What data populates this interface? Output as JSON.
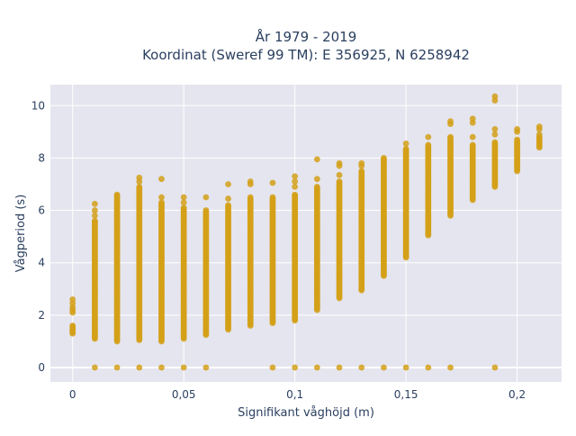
{
  "chart_data": {
    "type": "scatter",
    "title_line1": "År 1979 - 2019",
    "title_line2": "Koordinat (Sweref 99 TM): E 356925, N 6258942",
    "xlabel": "Signifikant våghöjd (m)",
    "ylabel": "Vågperiod (s)",
    "xlim": [
      -0.01,
      0.22
    ],
    "ylim": [
      -0.55,
      10.8
    ],
    "x_ticks": [
      0,
      0.05,
      0.1,
      0.15,
      0.2
    ],
    "x_tick_labels": [
      "0",
      "0,05",
      "0,1",
      "0,15",
      "0,2"
    ],
    "y_ticks": [
      0,
      2,
      4,
      6,
      8,
      10
    ],
    "y_tick_labels": [
      "0",
      "2",
      "4",
      "6",
      "8",
      "10"
    ],
    "grid": true,
    "marker_color": "#d4a017",
    "plot_background": "#e5e5ef",
    "columns": [
      {
        "x": 0.0,
        "y_min": 1.3,
        "y_max": 1.6,
        "extra_y": [
          2.1,
          2.2,
          2.3,
          2.45,
          2.6
        ],
        "zero": false
      },
      {
        "x": 0.01,
        "y_min": 1.1,
        "y_max": 5.6,
        "extra_y": [
          5.8,
          6.0,
          6.25
        ],
        "zero": true
      },
      {
        "x": 0.02,
        "y_min": 1.0,
        "y_max": 6.6,
        "extra_y": [],
        "zero": true
      },
      {
        "x": 0.03,
        "y_min": 1.05,
        "y_max": 6.9,
        "extra_y": [
          7.1,
          7.25
        ],
        "zero": true
      },
      {
        "x": 0.04,
        "y_min": 1.0,
        "y_max": 6.3,
        "extra_y": [
          6.5,
          7.2
        ],
        "zero": true
      },
      {
        "x": 0.05,
        "y_min": 1.1,
        "y_max": 6.1,
        "extra_y": [
          6.3,
          6.5
        ],
        "zero": true
      },
      {
        "x": 0.06,
        "y_min": 1.25,
        "y_max": 6.0,
        "extra_y": [
          6.5
        ],
        "zero": true
      },
      {
        "x": 0.07,
        "y_min": 1.45,
        "y_max": 6.2,
        "extra_y": [
          6.45,
          7.0
        ],
        "zero": false
      },
      {
        "x": 0.08,
        "y_min": 1.6,
        "y_max": 6.5,
        "extra_y": [
          7.0,
          7.1
        ],
        "zero": false
      },
      {
        "x": 0.09,
        "y_min": 1.7,
        "y_max": 6.5,
        "extra_y": [
          7.05
        ],
        "zero": true
      },
      {
        "x": 0.1,
        "y_min": 1.8,
        "y_max": 6.6,
        "extra_y": [
          6.9,
          7.1,
          7.3
        ],
        "zero": true
      },
      {
        "x": 0.11,
        "y_min": 2.2,
        "y_max": 6.9,
        "extra_y": [
          7.2,
          7.95
        ],
        "zero": true
      },
      {
        "x": 0.12,
        "y_min": 2.65,
        "y_max": 7.1,
        "extra_y": [
          7.35,
          7.7,
          7.8
        ],
        "zero": true
      },
      {
        "x": 0.13,
        "y_min": 3.0,
        "y_max": 7.5,
        "extra_y": [
          2.95,
          7.7,
          7.8
        ],
        "zero": true
      },
      {
        "x": 0.14,
        "y_min": 3.5,
        "y_max": 8.0,
        "extra_y": [],
        "zero": true
      },
      {
        "x": 0.15,
        "y_min": 4.2,
        "y_max": 8.35,
        "extra_y": [
          8.55
        ],
        "zero": true
      },
      {
        "x": 0.16,
        "y_min": 5.05,
        "y_max": 8.5,
        "extra_y": [
          8.8
        ],
        "zero": true
      },
      {
        "x": 0.17,
        "y_min": 5.8,
        "y_max": 8.8,
        "extra_y": [
          9.3,
          9.4
        ],
        "zero": true
      },
      {
        "x": 0.18,
        "y_min": 6.4,
        "y_max": 8.5,
        "extra_y": [
          8.8,
          9.35,
          9.5
        ],
        "zero": false
      },
      {
        "x": 0.19,
        "y_min": 6.9,
        "y_max": 8.6,
        "extra_y": [
          8.9,
          9.1,
          10.2,
          10.35
        ],
        "zero": true
      },
      {
        "x": 0.2,
        "y_min": 7.5,
        "y_max": 8.7,
        "extra_y": [
          9.0,
          9.1
        ],
        "zero": false
      },
      {
        "x": 0.21,
        "y_min": 8.4,
        "y_max": 8.8,
        "extra_y": [
          8.9,
          9.1,
          9.2
        ],
        "zero": false
      }
    ]
  }
}
